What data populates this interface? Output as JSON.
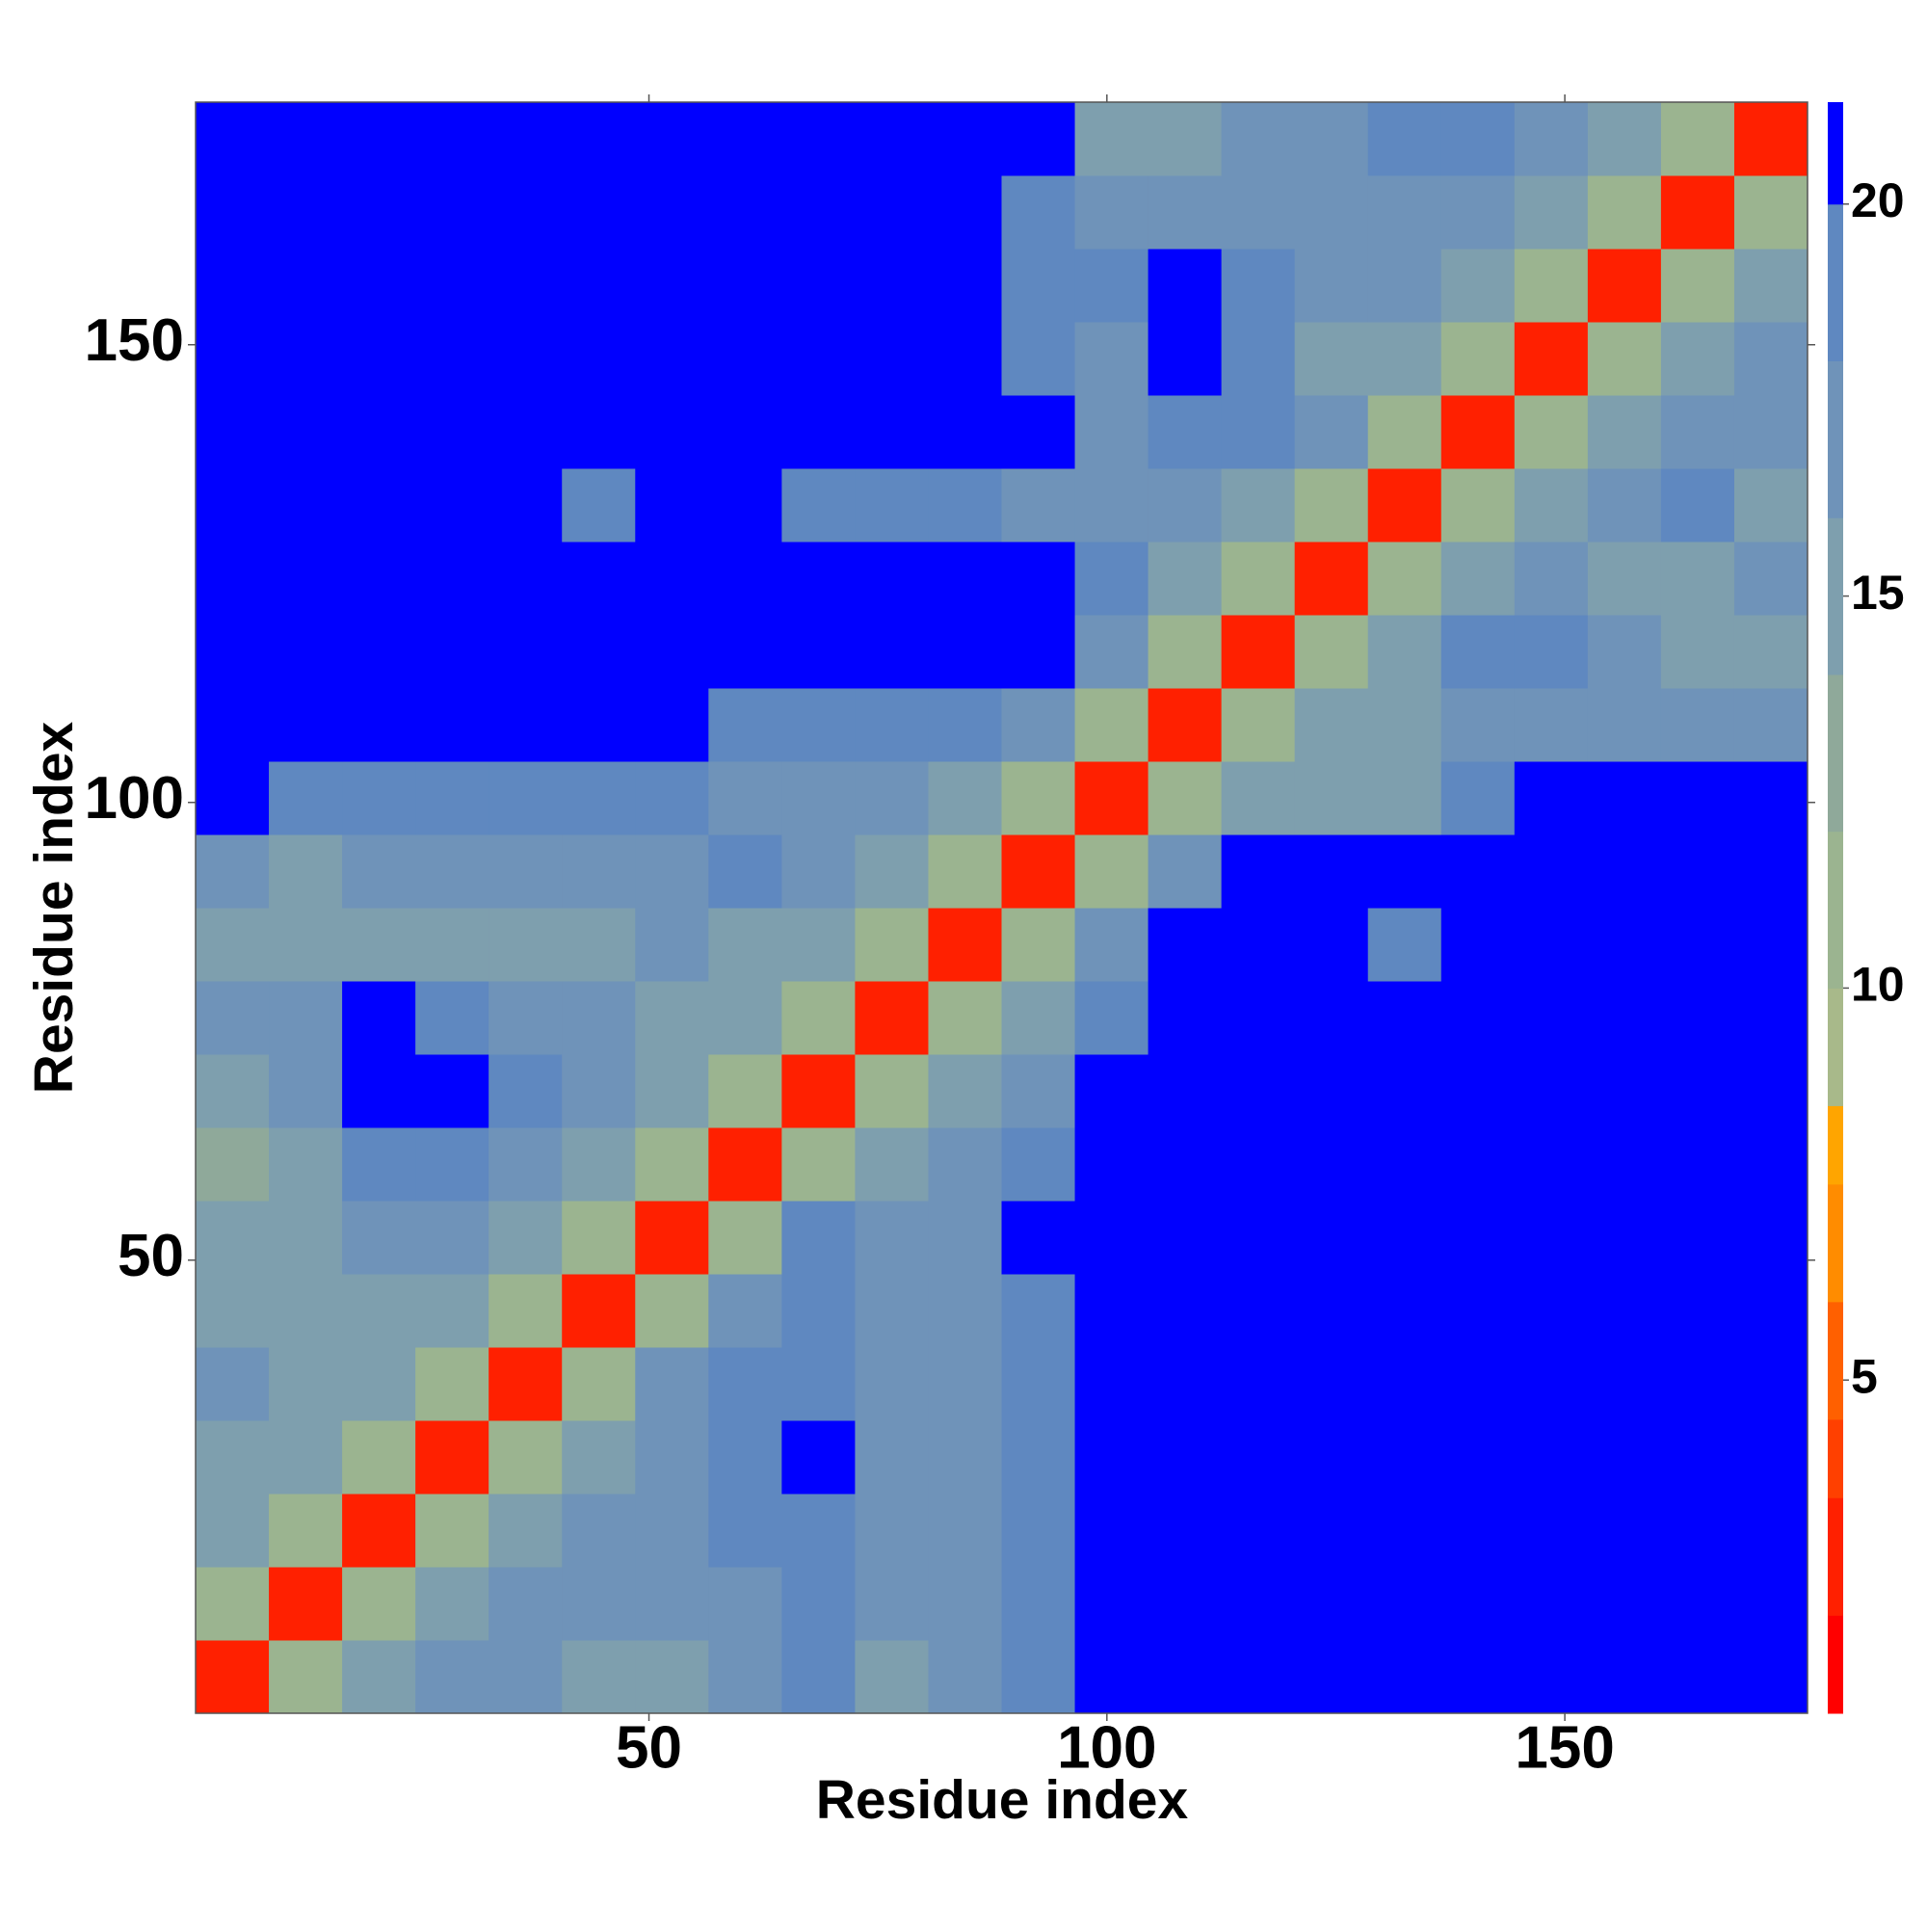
{
  "chart_data": {
    "type": "heatmap",
    "xlabel": "Residue index",
    "ylabel": "Residue index",
    "xlim": [
      0.5,
      176.5
    ],
    "ylim": [
      0.5,
      176.5
    ],
    "xticks": [
      50,
      100,
      150
    ],
    "yticks": [
      50,
      100,
      150
    ],
    "x_bins": [
      0.5,
      8.5,
      16.5,
      24.5,
      32.5,
      40.5,
      48.5,
      56.5,
      64.5,
      72.5,
      80.5,
      88.5,
      96.5,
      104.5,
      112.5,
      120.5,
      128.5,
      136.5,
      144.5,
      152.5,
      160.5,
      168.5,
      176.5
    ],
    "y_bins": [
      0.5,
      8.5,
      16.5,
      24.5,
      32.5,
      40.5,
      48.5,
      56.5,
      64.5,
      72.5,
      80.5,
      88.5,
      96.5,
      104.5,
      112.5,
      120.5,
      128.5,
      136.5,
      144.5,
      152.5,
      160.5,
      168.5,
      176.5
    ],
    "values": [
      [
        3,
        11,
        15,
        17,
        16,
        15,
        15,
        16,
        18,
        15,
        16,
        18,
        21,
        21,
        21,
        21,
        21,
        21,
        21,
        21,
        21,
        21
      ],
      [
        11,
        3,
        11,
        15,
        16,
        16,
        16,
        17,
        19,
        16,
        16,
        18,
        21,
        21,
        21,
        21,
        21,
        21,
        21,
        21,
        21,
        21
      ],
      [
        14,
        11,
        3,
        11,
        15,
        16,
        17,
        18,
        19,
        16,
        16,
        19,
        21,
        21,
        21,
        21,
        21,
        21,
        21,
        21,
        21,
        21
      ],
      [
        15,
        14,
        11,
        3,
        11,
        15,
        17,
        18,
        20,
        16,
        16,
        19,
        21,
        21,
        21,
        21,
        21,
        21,
        21,
        21,
        21,
        21
      ],
      [
        16,
        15,
        14,
        11,
        3,
        11,
        16,
        18,
        19,
        17,
        17,
        19,
        21,
        21,
        21,
        21,
        20,
        21,
        21,
        21,
        21,
        21
      ],
      [
        15,
        14,
        15,
        15,
        11,
        3,
        11,
        17,
        18,
        16,
        17,
        19,
        21,
        21,
        21,
        21,
        20,
        21,
        21,
        21,
        21,
        21
      ],
      [
        14,
        15,
        16,
        17,
        15,
        11,
        3,
        11,
        19,
        17,
        17,
        20,
        21,
        21,
        21,
        21,
        21,
        21,
        21,
        21,
        21,
        21
      ],
      [
        13,
        15,
        18,
        19,
        16,
        15,
        11,
        3,
        11,
        15,
        16,
        18,
        21,
        21,
        21,
        21,
        21,
        21,
        21,
        21,
        21,
        21
      ],
      [
        14,
        17,
        20,
        20,
        18,
        17,
        14,
        11,
        3,
        11,
        15,
        17,
        20,
        21,
        21,
        21,
        21,
        21,
        21,
        21,
        21,
        21
      ],
      [
        16,
        17,
        20,
        19,
        17,
        17,
        15,
        14,
        11,
        3,
        11,
        14,
        18,
        21,
        21,
        21,
        20,
        21,
        21,
        21,
        21,
        21
      ],
      [
        15,
        14,
        15,
        15,
        14,
        15,
        17,
        15,
        14,
        11,
        3,
        11,
        16,
        20,
        21,
        21,
        19,
        21,
        21,
        21,
        21,
        21
      ],
      [
        16,
        15,
        16,
        16,
        16,
        17,
        17,
        18,
        16,
        14,
        11,
        3,
        11,
        17,
        21,
        21,
        21,
        21,
        21,
        21,
        21,
        21
      ],
      [
        20,
        19,
        18,
        18,
        18,
        19,
        18,
        17,
        17,
        16,
        15,
        11,
        3,
        11,
        14,
        15,
        15,
        18,
        21,
        21,
        21,
        21
      ],
      [
        21,
        21,
        21,
        20,
        20,
        20,
        20,
        19,
        18,
        18,
        18,
        16,
        11,
        3,
        11,
        14,
        15,
        16,
        16,
        17,
        16,
        16
      ],
      [
        21,
        21,
        21,
        21,
        21,
        21,
        21,
        21,
        21,
        21,
        21,
        20,
        16,
        11,
        3,
        11,
        15,
        19,
        19,
        16,
        15,
        15
      ],
      [
        21,
        21,
        21,
        21,
        21,
        21,
        21,
        21,
        21,
        21,
        21,
        21,
        18,
        15,
        11,
        3,
        11,
        15,
        16,
        15,
        15,
        16
      ],
      [
        21,
        21,
        21,
        21,
        20,
        19,
        21,
        21,
        19,
        18,
        19,
        17,
        16,
        16,
        15,
        11,
        3,
        11,
        15,
        16,
        19,
        15
      ],
      [
        21,
        21,
        21,
        21,
        20,
        21,
        21,
        21,
        20,
        21,
        21,
        21,
        17,
        19,
        18,
        16,
        11,
        3,
        11,
        15,
        16,
        16
      ],
      [
        21,
        21,
        21,
        21,
        21,
        21,
        21,
        21,
        21,
        21,
        21,
        18,
        16,
        20,
        18,
        15,
        14,
        11,
        3,
        11,
        15,
        16
      ],
      [
        21,
        21,
        21,
        21,
        21,
        21,
        21,
        21,
        21,
        21,
        21,
        19,
        18,
        20,
        18,
        17,
        16,
        15,
        11,
        3,
        11,
        15
      ],
      [
        21,
        21,
        21,
        21,
        21,
        21,
        21,
        21,
        21,
        21,
        21,
        19,
        17,
        17,
        17,
        17,
        17,
        16,
        15,
        11,
        3,
        11
      ],
      [
        21,
        21,
        21,
        21,
        21,
        21,
        21,
        21,
        21,
        21,
        21,
        20,
        15,
        15,
        16,
        17,
        19,
        19,
        17,
        15,
        11,
        3
      ]
    ],
    "colorbar": {
      "levels": [
        0.75,
        2,
        3.5,
        4.5,
        6,
        7.5,
        8.5,
        10,
        12,
        14,
        16,
        18,
        20,
        21.3
      ],
      "colors": [
        "#ff0000",
        "#ff2000",
        "#ff4000",
        "#ff6000",
        "#ff8c00",
        "#ffa500",
        "#a8b98a",
        "#9bb490",
        "#8fa99a",
        "#7e9fae",
        "#6f93b9",
        "#5f88c0",
        "#0000ff"
      ],
      "ticks": [
        5,
        10,
        15,
        20
      ]
    }
  }
}
